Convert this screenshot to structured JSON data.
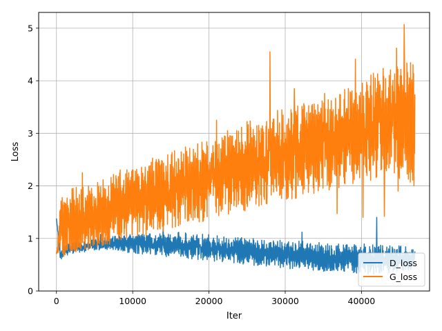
{
  "chart_data": {
    "type": "line",
    "title": "",
    "xlabel": "Iter",
    "ylabel": "Loss",
    "xlim": [
      -2330,
      48930
    ],
    "ylim": [
      0,
      5.3
    ],
    "xticks": [
      0,
      10000,
      20000,
      30000,
      40000
    ],
    "xtick_labels": [
      "0",
      "10000",
      "20000",
      "30000",
      "40000"
    ],
    "yticks": [
      0,
      1,
      2,
      3,
      4,
      5
    ],
    "ytick_labels": [
      "0",
      "1",
      "2",
      "3",
      "4",
      "5"
    ],
    "grid": true,
    "legend_position": "lower right",
    "series": [
      {
        "name": "D_loss",
        "color": "#1f77b4",
        "x": [
          0,
          500,
          1000,
          2000,
          3000,
          4000,
          5000,
          6000,
          8000,
          10000,
          12000,
          14000,
          16000,
          18000,
          20000,
          22000,
          24000,
          26000,
          28000,
          30000,
          32000,
          34000,
          36000,
          38000,
          40000,
          42000,
          44000,
          46000,
          47000
        ],
        "low": [
          1.38,
          0.56,
          0.65,
          0.7,
          0.72,
          0.74,
          0.76,
          0.77,
          0.74,
          0.72,
          0.69,
          0.66,
          0.63,
          0.6,
          0.57,
          0.54,
          0.51,
          0.48,
          0.45,
          0.43,
          0.4,
          0.38,
          0.36,
          0.34,
          0.31,
          0.32,
          0.33,
          0.4,
          0.42
        ],
        "high": [
          1.38,
          0.8,
          0.9,
          0.92,
          0.95,
          0.98,
          1.0,
          1.02,
          1.05,
          1.08,
          1.1,
          1.1,
          1.12,
          1.1,
          1.08,
          1.05,
          1.03,
          1.0,
          0.98,
          0.96,
          0.95,
          0.93,
          0.92,
          0.9,
          0.9,
          0.88,
          0.88,
          0.85,
          0.82
        ],
        "spikes": [
          [
            5800,
            1.08
          ],
          [
            14000,
            1.25
          ],
          [
            19300,
            1.3
          ],
          [
            27900,
            1.28
          ],
          [
            32200,
            1.12
          ],
          [
            36900,
            1.2
          ],
          [
            39100,
            1.22
          ],
          [
            42000,
            1.4
          ],
          [
            46100,
            0.97
          ]
        ]
      },
      {
        "name": "G_loss",
        "color": "#ff7f0e",
        "x": [
          0,
          500,
          1000,
          2000,
          3000,
          4000,
          5000,
          6000,
          8000,
          10000,
          12000,
          14000,
          16000,
          18000,
          20000,
          22000,
          24000,
          26000,
          28000,
          30000,
          32000,
          34000,
          36000,
          38000,
          40000,
          42000,
          44000,
          46000,
          47000
        ],
        "low": [
          0.7,
          0.65,
          0.66,
          0.7,
          0.75,
          0.78,
          0.8,
          0.85,
          0.92,
          1.0,
          1.05,
          1.12,
          1.2,
          1.28,
          1.35,
          1.42,
          1.48,
          1.55,
          1.62,
          1.7,
          1.78,
          1.85,
          1.92,
          1.98,
          2.05,
          2.1,
          2.15,
          2.0,
          1.95
        ],
        "high": [
          0.7,
          1.7,
          1.9,
          2.0,
          2.0,
          2.05,
          2.1,
          2.15,
          2.3,
          2.4,
          2.5,
          2.6,
          2.7,
          2.8,
          2.95,
          3.05,
          3.2,
          3.3,
          3.4,
          3.5,
          3.6,
          3.7,
          3.8,
          3.9,
          4.0,
          4.2,
          4.3,
          4.4,
          4.3
        ],
        "spikes": [
          [
            3400,
            2.25
          ],
          [
            15300,
            2.85
          ],
          [
            16300,
            3.2
          ],
          [
            21000,
            3.25
          ],
          [
            24700,
            3.5
          ],
          [
            28000,
            4.55
          ],
          [
            31200,
            3.85
          ],
          [
            37100,
            4.56
          ],
          [
            39200,
            4.41
          ],
          [
            42500,
            4.89
          ],
          [
            44600,
            4.62
          ],
          [
            45600,
            5.07
          ],
          [
            46700,
            4.63
          ]
        ],
        "dips": [
          [
            31500,
            1.13
          ],
          [
            36800,
            1.47
          ],
          [
            40200,
            1.4
          ],
          [
            43000,
            1.42
          ],
          [
            44800,
            1.9
          ]
        ]
      }
    ]
  }
}
